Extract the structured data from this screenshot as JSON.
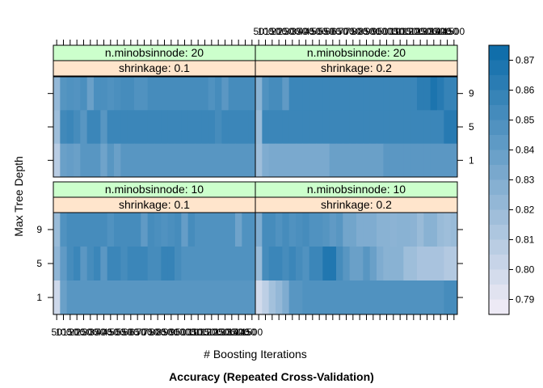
{
  "chart_data": {
    "type": "heatmap",
    "title": "Accuracy (Repeated Cross-Validation)",
    "xlabel": "# Boosting Iterations",
    "ylabel": "Max Tree Depth",
    "x": [
      50,
      100,
      150,
      200,
      250,
      300,
      350,
      400,
      450,
      500,
      550,
      600,
      650,
      700,
      750,
      800,
      850,
      900,
      950,
      1000,
      1050,
      1100,
      1150,
      1200,
      1250,
      1300,
      1350,
      1400,
      1450,
      1500
    ],
    "y_ticks": [
      1,
      5,
      9
    ],
    "colorbar": {
      "ticks": [
        0.79,
        0.8,
        0.81,
        0.82,
        0.83,
        0.84,
        0.85,
        0.86,
        0.87
      ],
      "range": [
        0.785,
        0.875
      ],
      "low_color": "#f4eef7",
      "high_color": "#0a6aa8"
    },
    "panels": [
      {
        "position": "top-left",
        "strips": [
          "n.minobsinnode: 20",
          "shrinkage: 0.1"
        ],
        "values": {
          "9": [
            0.822,
            0.846,
            0.848,
            0.847,
            0.85,
            0.838,
            0.85,
            0.85,
            0.848,
            0.85,
            0.852,
            0.852,
            0.848,
            0.848,
            0.852,
            0.852,
            0.852,
            0.852,
            0.852,
            0.852,
            0.852,
            0.852,
            0.852,
            0.848,
            0.852,
            0.844,
            0.852,
            0.852,
            0.852,
            0.852
          ],
          "5": [
            0.818,
            0.854,
            0.856,
            0.852,
            0.845,
            0.856,
            0.856,
            0.845,
            0.856,
            0.856,
            0.856,
            0.856,
            0.856,
            0.856,
            0.856,
            0.856,
            0.856,
            0.856,
            0.856,
            0.856,
            0.856,
            0.856,
            0.856,
            0.856,
            0.852,
            0.856,
            0.856,
            0.856,
            0.856,
            0.856
          ],
          "1": [
            0.808,
            0.838,
            0.84,
            0.838,
            0.845,
            0.845,
            0.845,
            0.836,
            0.845,
            0.838,
            0.845,
            0.845,
            0.845,
            0.845,
            0.845,
            0.845,
            0.845,
            0.845,
            0.845,
            0.845,
            0.845,
            0.845,
            0.845,
            0.845,
            0.845,
            0.845,
            0.845,
            0.845,
            0.845,
            0.845
          ]
        }
      },
      {
        "position": "top-right",
        "strips": [
          "n.minobsinnode: 20",
          "shrinkage: 0.2"
        ],
        "values": {
          "9": [
            0.826,
            0.848,
            0.852,
            0.852,
            0.842,
            0.856,
            0.856,
            0.856,
            0.856,
            0.856,
            0.856,
            0.856,
            0.856,
            0.856,
            0.856,
            0.856,
            0.856,
            0.856,
            0.856,
            0.856,
            0.856,
            0.856,
            0.856,
            0.856,
            0.862,
            0.862,
            0.868,
            0.864,
            0.858,
            0.858
          ],
          "5": [
            0.82,
            0.856,
            0.856,
            0.856,
            0.856,
            0.856,
            0.856,
            0.856,
            0.856,
            0.856,
            0.856,
            0.856,
            0.856,
            0.856,
            0.856,
            0.856,
            0.856,
            0.856,
            0.856,
            0.856,
            0.856,
            0.856,
            0.856,
            0.856,
            0.856,
            0.856,
            0.856,
            0.856,
            0.864,
            0.864
          ],
          "1": [
            0.818,
            0.83,
            0.832,
            0.832,
            0.832,
            0.832,
            0.832,
            0.832,
            0.832,
            0.832,
            0.832,
            0.838,
            0.838,
            0.838,
            0.838,
            0.838,
            0.838,
            0.838,
            0.838,
            0.844,
            0.844,
            0.844,
            0.844,
            0.844,
            0.844,
            0.844,
            0.844,
            0.844,
            0.844,
            0.844
          ]
        }
      },
      {
        "position": "bottom-left",
        "strips": [
          "n.minobsinnode: 10",
          "shrinkage: 0.1"
        ],
        "values": {
          "9": [
            0.82,
            0.848,
            0.852,
            0.852,
            0.852,
            0.852,
            0.852,
            0.852,
            0.848,
            0.852,
            0.852,
            0.852,
            0.852,
            0.842,
            0.852,
            0.85,
            0.848,
            0.85,
            0.852,
            0.84,
            0.852,
            0.848,
            0.848,
            0.848,
            0.848,
            0.848,
            0.848,
            0.836,
            0.848,
            0.848
          ],
          "5": [
            0.824,
            0.842,
            0.852,
            0.856,
            0.844,
            0.852,
            0.856,
            0.844,
            0.856,
            0.856,
            0.852,
            0.856,
            0.856,
            0.856,
            0.852,
            0.852,
            0.858,
            0.858,
            0.852,
            0.848,
            0.848,
            0.848,
            0.848,
            0.848,
            0.848,
            0.848,
            0.848,
            0.848,
            0.848,
            0.848
          ],
          "1": [
            0.8,
            0.838,
            0.845,
            0.845,
            0.845,
            0.845,
            0.845,
            0.845,
            0.845,
            0.845,
            0.845,
            0.845,
            0.845,
            0.845,
            0.845,
            0.845,
            0.845,
            0.845,
            0.845,
            0.845,
            0.845,
            0.845,
            0.845,
            0.845,
            0.845,
            0.845,
            0.845,
            0.845,
            0.845,
            0.845
          ]
        }
      },
      {
        "position": "bottom-right",
        "strips": [
          "n.minobsinnode: 10",
          "shrinkage: 0.2"
        ],
        "values": {
          "9": [
            0.83,
            0.852,
            0.852,
            0.848,
            0.852,
            0.848,
            0.85,
            0.852,
            0.848,
            0.848,
            0.846,
            0.842,
            0.845,
            0.835,
            0.835,
            0.83,
            0.83,
            0.83,
            0.826,
            0.826,
            0.825,
            0.826,
            0.826,
            0.825,
            0.82,
            0.826,
            0.826,
            0.82,
            0.818,
            0.82
          ],
          "5": [
            0.82,
            0.852,
            0.856,
            0.856,
            0.852,
            0.856,
            0.852,
            0.848,
            0.856,
            0.856,
            0.866,
            0.866,
            0.852,
            0.845,
            0.838,
            0.838,
            0.845,
            0.838,
            0.83,
            0.826,
            0.826,
            0.826,
            0.818,
            0.818,
            0.814,
            0.814,
            0.814,
            0.814,
            0.81,
            0.81
          ],
          "1": [
            0.798,
            0.806,
            0.816,
            0.822,
            0.83,
            0.845,
            0.845,
            0.848,
            0.848,
            0.848,
            0.848,
            0.848,
            0.848,
            0.848,
            0.848,
            0.848,
            0.848,
            0.848,
            0.848,
            0.848,
            0.848,
            0.848,
            0.848,
            0.848,
            0.848,
            0.848,
            0.848,
            0.848,
            0.852,
            0.852
          ]
        }
      }
    ]
  }
}
